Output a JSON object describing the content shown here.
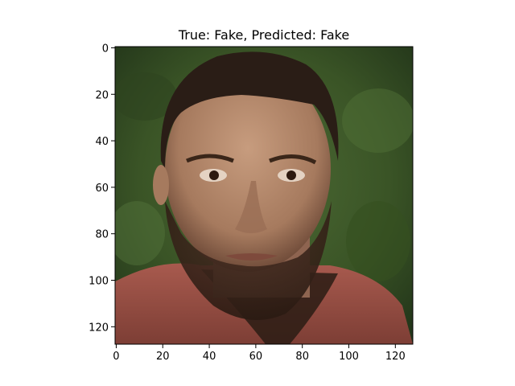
{
  "figure": {
    "title": "True: Fake, Predicted: Fake"
  },
  "axes": {
    "x_ticks": [
      "0",
      "20",
      "40",
      "60",
      "80",
      "100",
      "120"
    ],
    "y_ticks": [
      "0",
      "20",
      "40",
      "60",
      "80",
      "100",
      "120"
    ],
    "x_values": [
      0,
      20,
      40,
      60,
      80,
      100,
      120
    ],
    "y_values": [
      0,
      20,
      40,
      60,
      80,
      100,
      120
    ],
    "xlim": [
      -0.5,
      127.5
    ],
    "ylim": [
      127.5,
      -0.5
    ]
  },
  "image": {
    "description_icon": "face-photo",
    "background_color": "#3d5a2a",
    "skin_color": "#b58a6e",
    "hair_color": "#2a1d16",
    "shirt_color": "#9a5046"
  }
}
